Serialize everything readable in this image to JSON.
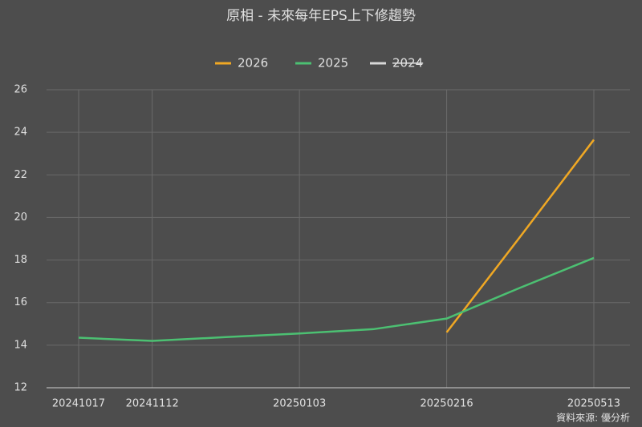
{
  "chart_data": {
    "type": "line",
    "title": "原相 - 未來每年EPS上下修趨勢",
    "source": "資料來源: 優分析",
    "categories": [
      "20241017",
      "20241112",
      null,
      "20250103",
      null,
      "20250216",
      null,
      "20250513"
    ],
    "series": [
      {
        "name": "2026",
        "color": "#f0a824",
        "values": [
          null,
          null,
          null,
          null,
          null,
          14.6,
          19.1,
          23.65
        ]
      },
      {
        "name": "2025",
        "color": "#4cc072",
        "values": [
          14.35,
          14.2,
          14.38,
          14.55,
          14.75,
          15.25,
          16.7,
          18.1
        ]
      },
      {
        "name": "2024",
        "color": "#d8d8d8",
        "hidden": true,
        "values": [
          null,
          null,
          null,
          null,
          null,
          null,
          null,
          null
        ]
      }
    ],
    "ylim": [
      12,
      26
    ],
    "yticks": [
      12,
      14,
      16,
      18,
      20,
      22,
      24,
      26
    ],
    "grid": true,
    "legend": "top"
  }
}
